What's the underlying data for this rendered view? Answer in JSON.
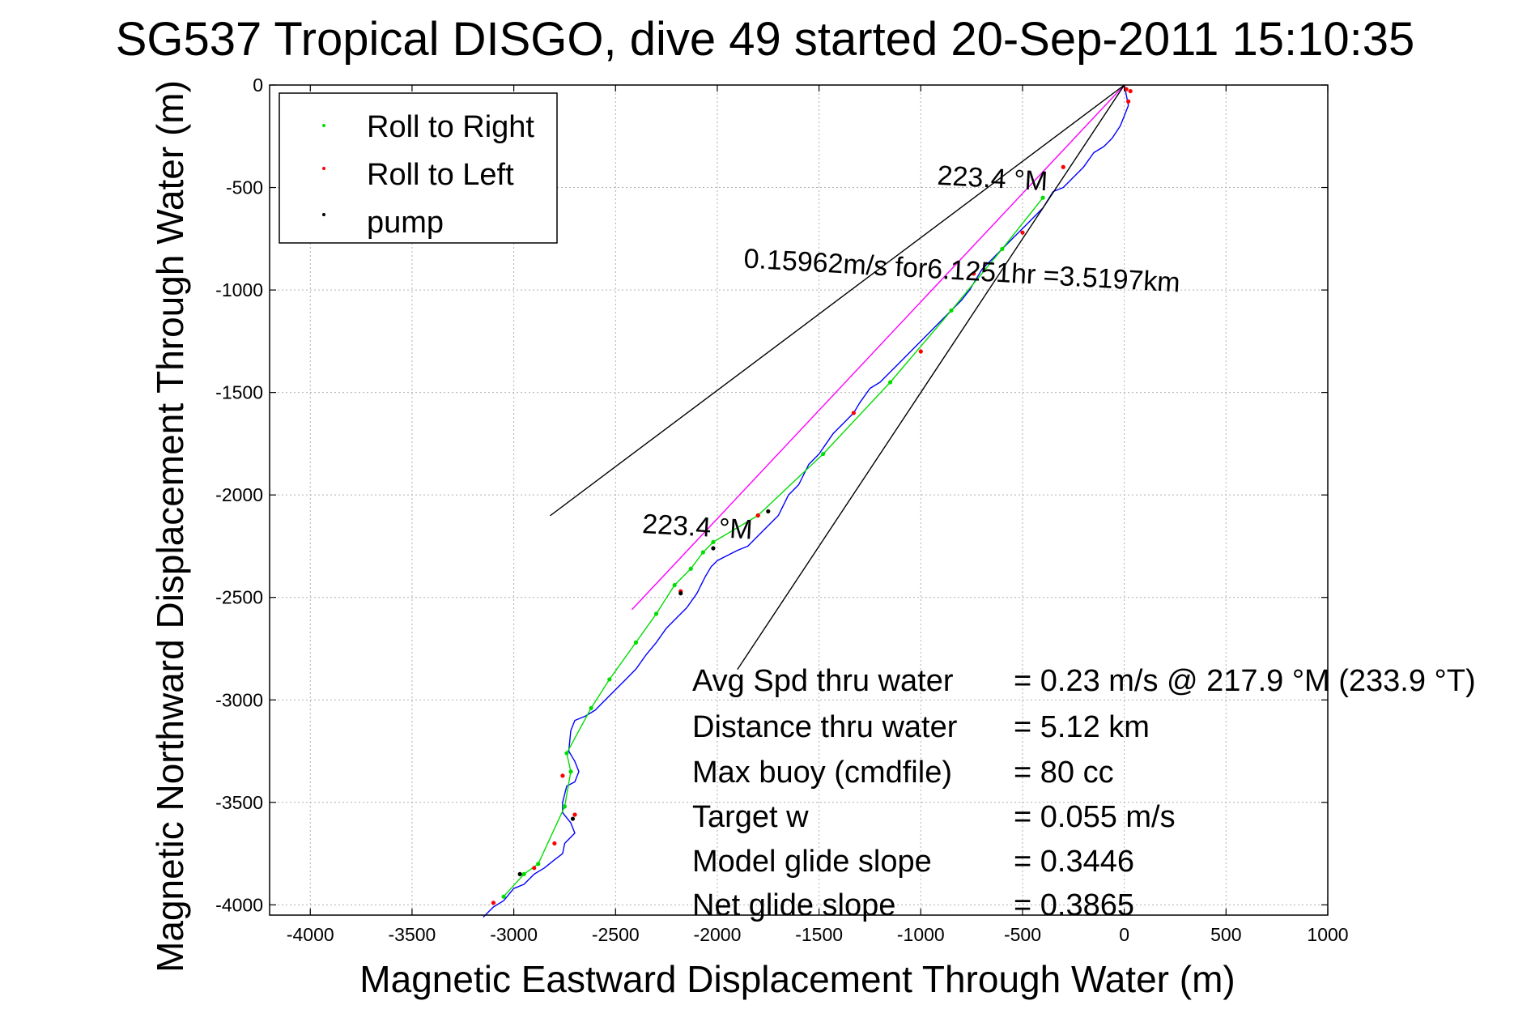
{
  "chart_data": {
    "type": "line",
    "title": "SG537 Tropical DISGO, dive 49 started 20-Sep-2011 15:10:35",
    "xlabel": "Magnetic Eastward Displacement Through Water (m)",
    "ylabel": "Magnetic Northward Displacement Through Water (m)",
    "xlim": [
      -4200,
      1000
    ],
    "ylim": [
      -4050,
      0
    ],
    "x_ticks": [
      -4000,
      -3500,
      -3000,
      -2500,
      -2000,
      -1500,
      -1000,
      -500,
      0,
      500,
      1000
    ],
    "y_ticks": [
      0,
      -500,
      -1000,
      -1500,
      -2000,
      -2500,
      -3000,
      -3500,
      -4000
    ],
    "grid": true,
    "legend_position": "top-left",
    "legend": [
      {
        "label": "Roll to Right",
        "color": "#00dd00"
      },
      {
        "label": "Roll to Left",
        "color": "#ff0000"
      },
      {
        "label": "pump",
        "color": "#000000"
      }
    ],
    "series": [
      {
        "color": "#0000ff",
        "x": [
          0,
          10,
          20,
          0,
          -20,
          -60,
          -100,
          -150,
          -200,
          -300,
          -350,
          -400,
          -500,
          -550,
          -600,
          -700,
          -760,
          -800,
          -900,
          -1000,
          -1100,
          -1200,
          -1250,
          -1300,
          -1330,
          -1380,
          -1430,
          -1500,
          -1550,
          -1600,
          -1650,
          -1700,
          -1750,
          -1800,
          -1850,
          -1900,
          -1960,
          -2000,
          -2030,
          -2060,
          -2100,
          -2150,
          -2200,
          -2250,
          -2300,
          -2350,
          -2400,
          -2450,
          -2500,
          -2550,
          -2600,
          -2650,
          -2700,
          -2720,
          -2730,
          -2700,
          -2680,
          -2700,
          -2740,
          -2760,
          -2760,
          -2720,
          -2700,
          -2750,
          -2760,
          -2800,
          -2850,
          -2900,
          -2950,
          -3000,
          -3050,
          -3100,
          -3150
        ],
        "y": [
          0,
          -50,
          -100,
          -150,
          -200,
          -260,
          -300,
          -330,
          -400,
          -500,
          -520,
          -600,
          -700,
          -750,
          -800,
          -900,
          -1000,
          -1050,
          -1150,
          -1250,
          -1350,
          -1450,
          -1480,
          -1550,
          -1600,
          -1650,
          -1700,
          -1800,
          -1850,
          -1950,
          -2000,
          -2100,
          -2150,
          -2200,
          -2250,
          -2270,
          -2300,
          -2320,
          -2350,
          -2400,
          -2480,
          -2550,
          -2600,
          -2650,
          -2720,
          -2780,
          -2850,
          -2900,
          -2950,
          -3000,
          -3050,
          -3080,
          -3100,
          -3150,
          -3250,
          -3300,
          -3350,
          -3400,
          -3420,
          -3500,
          -3550,
          -3600,
          -3650,
          -3700,
          -3750,
          -3780,
          -3820,
          -3850,
          -3900,
          -3920,
          -3980,
          -4010,
          -4060
        ]
      },
      {
        "color": "#00dd00",
        "x": [
          -3050,
          -2950,
          -2880,
          -2750,
          -2720,
          -2740,
          -2620,
          -2530,
          -2400,
          -2300,
          -2210,
          -2130,
          -2070,
          -2020,
          -1800,
          -1480,
          -1150,
          -850,
          -600,
          -400
        ],
        "y": [
          -3960,
          -3850,
          -3800,
          -3520,
          -3350,
          -3260,
          -3040,
          -2900,
          -2720,
          -2580,
          -2440,
          -2360,
          -2280,
          -2230,
          -2100,
          -1800,
          -1450,
          -1100,
          -800,
          -550
        ]
      },
      {
        "color": "#ff0000",
        "x": [
          -3100,
          -2900,
          -2800,
          -2760,
          -2700,
          -2180,
          -1800,
          -1330,
          -1000,
          -740,
          -500,
          -300,
          10,
          20,
          30
        ],
        "y": [
          -3990,
          -3820,
          -3700,
          -3370,
          -3560,
          -2470,
          -2100,
          -1600,
          -1300,
          -920,
          -720,
          -400,
          -20,
          -80,
          -30
        ],
        "marker_only": true
      },
      {
        "color": "#000000",
        "x": [
          -2970,
          -2710,
          -2020,
          -2180,
          -1750
        ],
        "y": [
          -3850,
          -3580,
          -2260,
          -2480,
          -2080
        ],
        "marker_only": true
      },
      {
        "color": "#ff00ff",
        "x": [
          0,
          -2420
        ],
        "y": [
          0,
          -2560
        ]
      },
      {
        "color": "#000000",
        "x": [
          0,
          -2820,
          0,
          -1900,
          0
        ],
        "y": [
          0,
          -2100,
          0,
          -2850,
          0
        ]
      }
    ],
    "annotations": [
      {
        "text": "223.4 °M",
        "x": -2100,
        "y": -2200,
        "angle": 223.4
      },
      {
        "text": "223.4 °M",
        "x": -650,
        "y": -500,
        "angle": 223.4
      },
      {
        "text": "0.15962m/s for6.1251hr =3.5197km",
        "x": -800,
        "y": -950,
        "angle": 223.4
      }
    ]
  },
  "stats": [
    {
      "label": "Avg Spd thru water",
      "value": "=  0.23 m/s @ 217.9 °M (233.9 °T)"
    },
    {
      "label": "Distance thru water",
      "value": "=  5.12 km"
    },
    {
      "label": "Max buoy (cmdfile)",
      "value": "= 80 cc"
    },
    {
      "label": "Target w",
      "value": "= 0.055 m/s"
    },
    {
      "label": "Model glide slope",
      "value": "= 0.3446"
    },
    {
      "label": "Net glide slope",
      "value": "= 0.3865"
    }
  ]
}
